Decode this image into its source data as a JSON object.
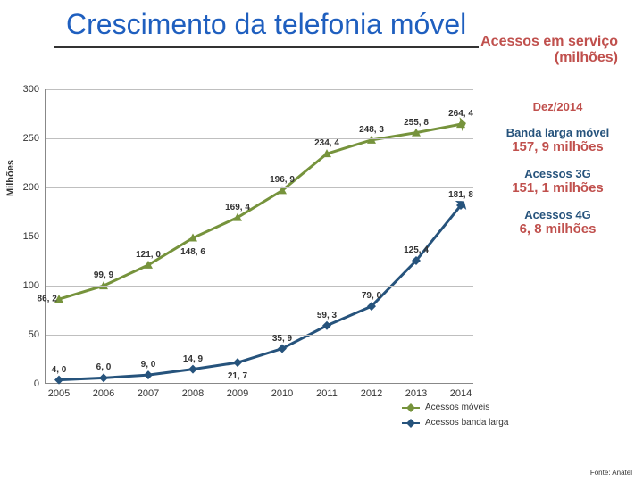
{
  "title": "Crescimento da telefonia móvel",
  "subtitle_line1": "Acessos em serviço",
  "subtitle_line2": "(milhões)",
  "yaxis_label": "Milhões",
  "colors": {
    "title": "#1f5fbf",
    "subtitle": "#c0504d",
    "series_mobile": "#76933c",
    "series_broadband": "#26537c",
    "grid": "#bfbfbf"
  },
  "chart": {
    "ylim": [
      0,
      300
    ],
    "ytick_step": 50,
    "categories": [
      "2005",
      "2006",
      "2007",
      "2008",
      "2009",
      "2010",
      "2011",
      "2012",
      "2013",
      "2014"
    ],
    "series": [
      {
        "name": "Acessos móveis",
        "color": "#76933c",
        "marker": "triangle",
        "values": [
          86.2,
          99.9,
          121.0,
          148.6,
          169.4,
          196.9,
          234.4,
          248.3,
          255.8,
          264.4
        ],
        "labels": [
          "86, 2",
          "99, 9",
          "121, 0",
          "148, 6",
          "169, 4",
          "196, 9",
          "234, 4",
          "248, 3",
          "255, 8",
          "264, 4"
        ],
        "label_pos": [
          "left",
          "above",
          "above",
          "below",
          "above",
          "above",
          "above",
          "above",
          "above",
          "above"
        ]
      },
      {
        "name": "Acessos banda larga",
        "color": "#26537c",
        "marker": "diamond",
        "values": [
          4.0,
          6.0,
          9.0,
          14.9,
          21.7,
          35.9,
          59.3,
          79.0,
          125.4,
          181.8
        ],
        "labels": [
          "4, 0",
          "6, 0",
          "9, 0",
          "14, 9",
          "21, 7",
          "35, 9",
          "59, 3",
          "79, 0",
          "125, 4",
          "181, 8"
        ],
        "label_pos": [
          "above",
          "above",
          "above",
          "above",
          "below",
          "above",
          "above",
          "above",
          "above",
          "above"
        ]
      }
    ]
  },
  "side_items": [
    {
      "label": "Dez/2014",
      "value": "",
      "label_color": "#c0504d",
      "value_color": "#c0504d"
    },
    {
      "label": "Banda larga móvel",
      "value": "157, 9 milhões",
      "label_color": "#26537c",
      "value_color": "#c0504d"
    },
    {
      "label": "Acessos 3G",
      "value": "151, 1 milhões",
      "label_color": "#26537c",
      "value_color": "#c0504d"
    },
    {
      "label": "Acessos 4G",
      "value": "6, 8 milhões",
      "label_color": "#26537c",
      "value_color": "#c0504d"
    }
  ],
  "legend": {
    "items": [
      {
        "label": "Acessos móveis",
        "color": "#76933c"
      },
      {
        "label": "Acessos banda larga",
        "color": "#26537c"
      }
    ]
  },
  "source": "Fonte: Anatel"
}
